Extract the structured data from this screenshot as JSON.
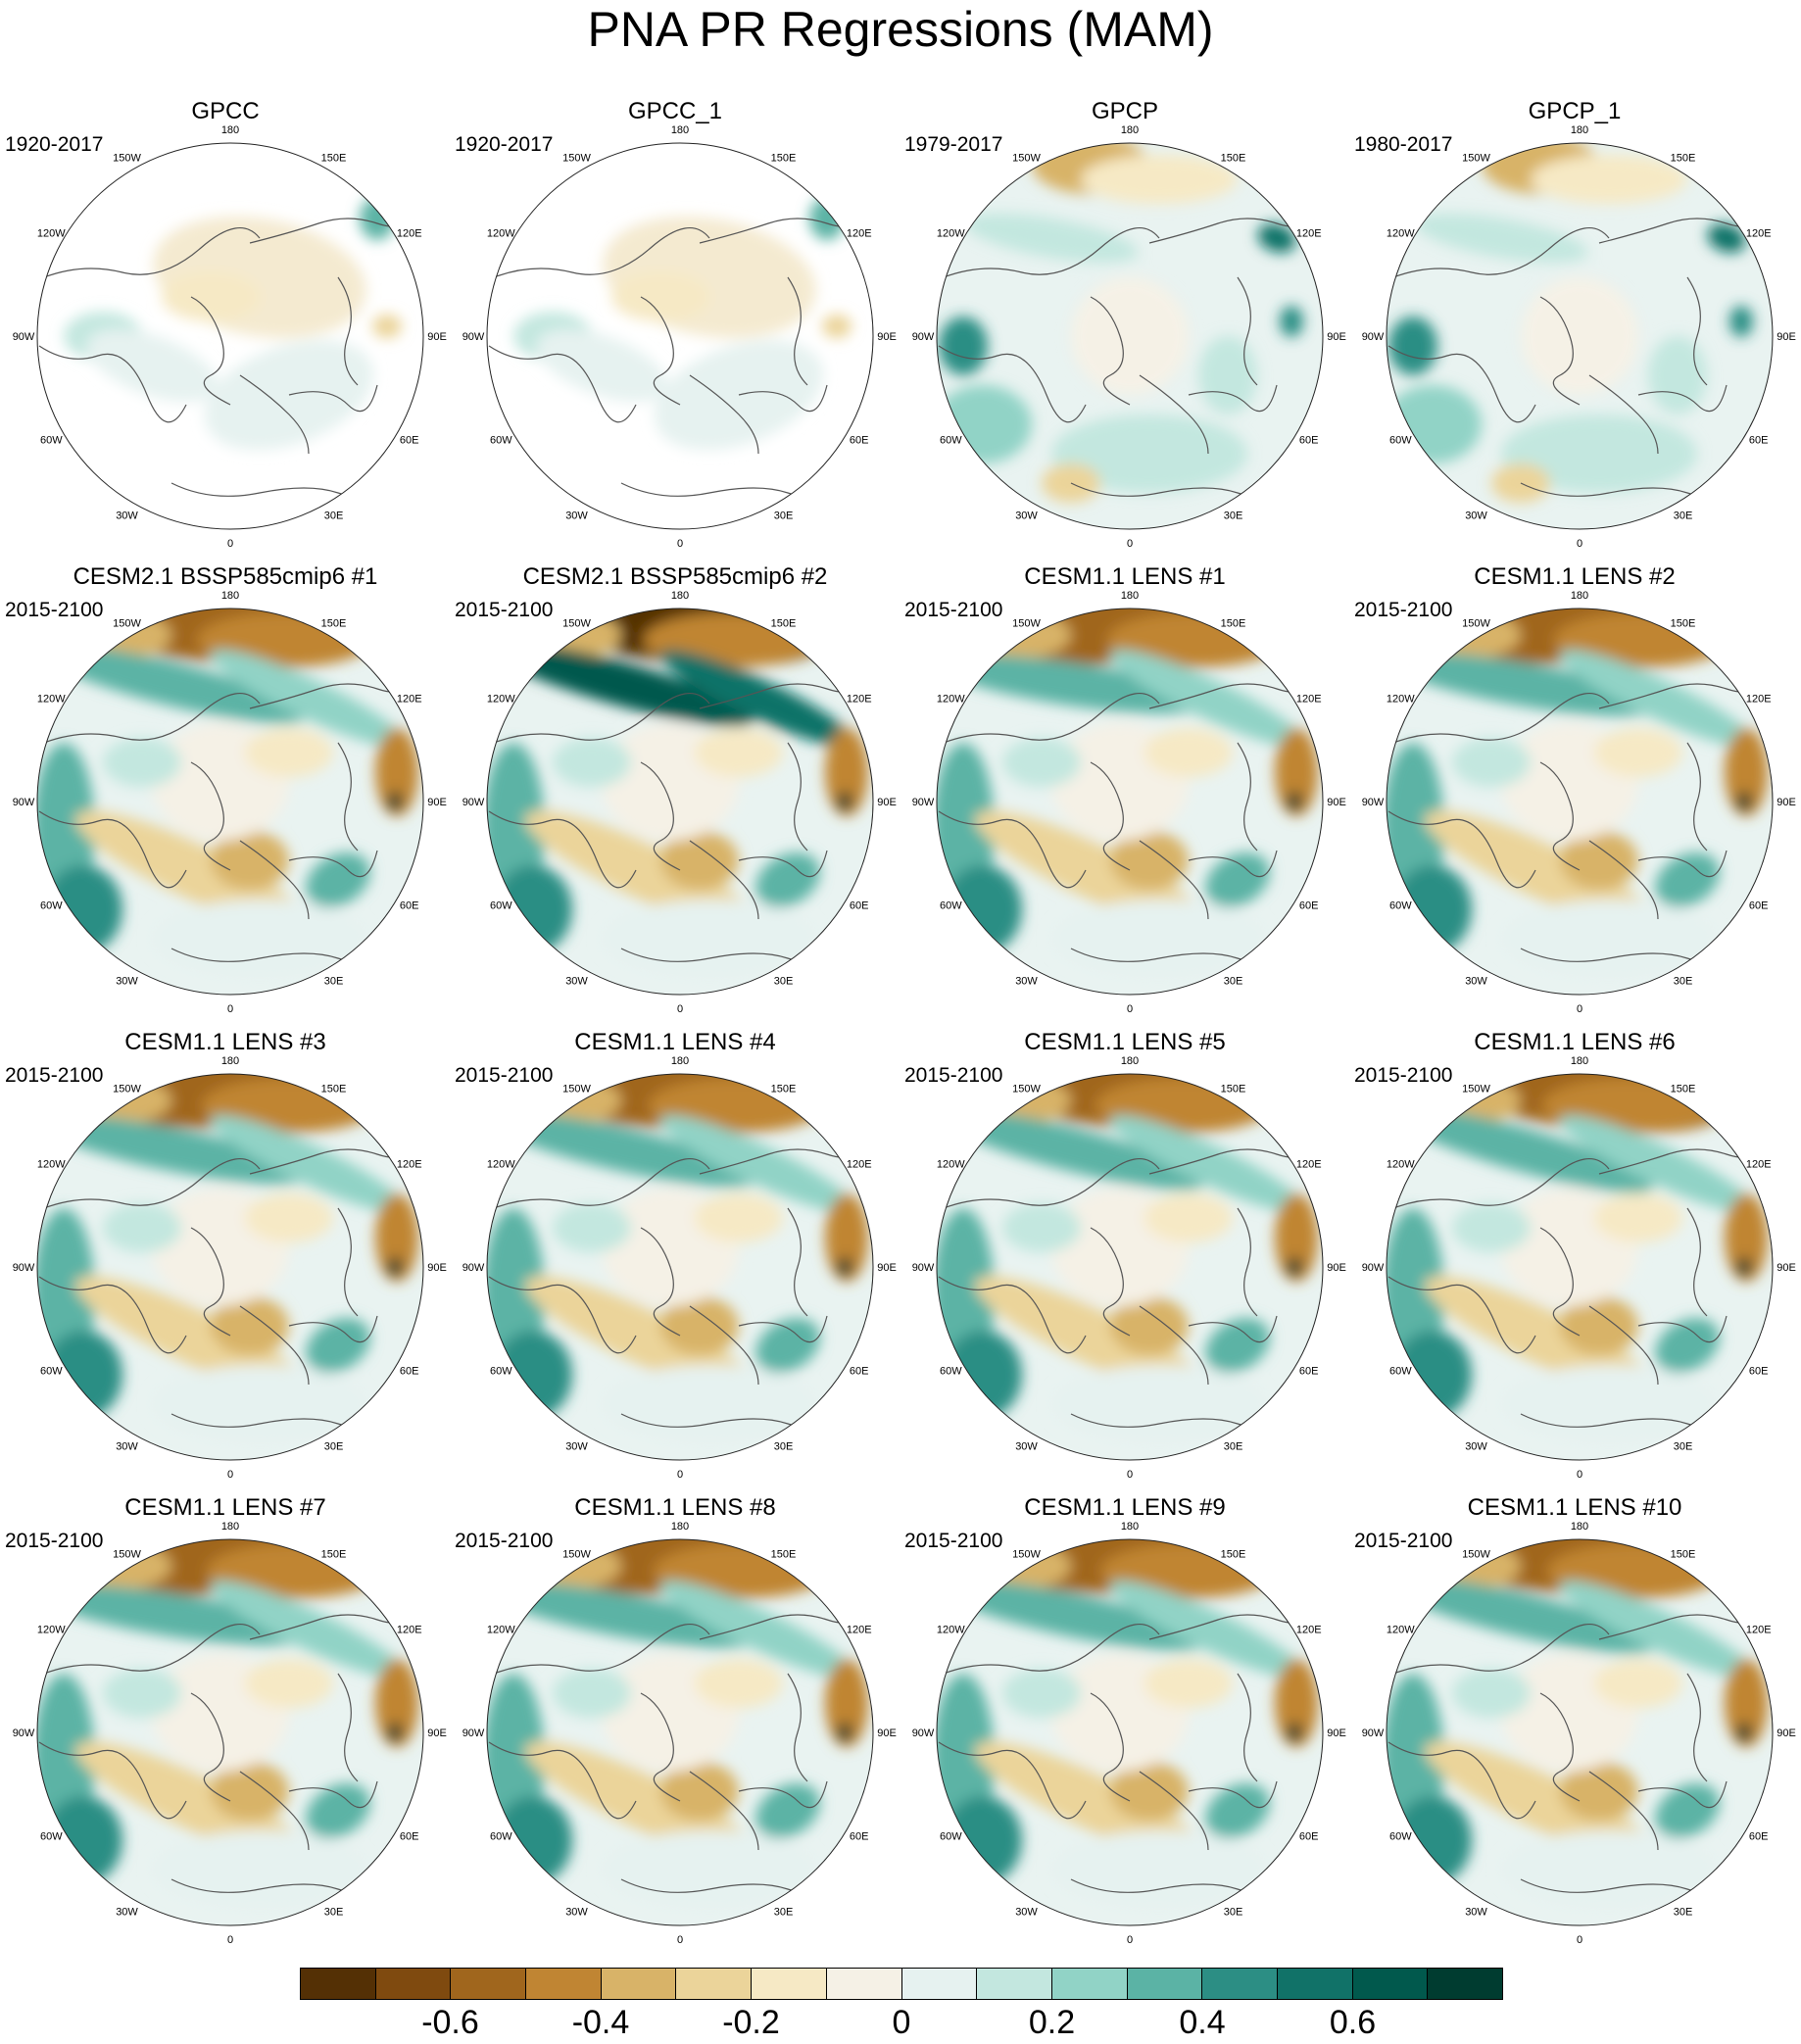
{
  "title": "PNA PR Regressions (MAM)",
  "panels": [
    {
      "title": "GPCC",
      "period": "1920-2017"
    },
    {
      "title": "GPCC_1",
      "period": "1920-2017"
    },
    {
      "title": "GPCP",
      "period": "1979-2017"
    },
    {
      "title": "GPCP_1",
      "period": "1980-2017"
    },
    {
      "title": "CESM2.1 BSSP585cmip6 #1",
      "period": "2015-2100"
    },
    {
      "title": "CESM2.1 BSSP585cmip6 #2",
      "period": "2015-2100"
    },
    {
      "title": "CESM1.1 LENS #1",
      "period": "2015-2100"
    },
    {
      "title": "CESM1.1 LENS #2",
      "period": "2015-2100"
    },
    {
      "title": "CESM1.1 LENS #3",
      "period": "2015-2100"
    },
    {
      "title": "CESM1.1 LENS #4",
      "period": "2015-2100"
    },
    {
      "title": "CESM1.1 LENS #5",
      "period": "2015-2100"
    },
    {
      "title": "CESM1.1 LENS #6",
      "period": "2015-2100"
    },
    {
      "title": "CESM1.1 LENS #7",
      "period": "2015-2100"
    },
    {
      "title": "CESM1.1 LENS #8",
      "period": "2015-2100"
    },
    {
      "title": "CESM1.1 LENS #9",
      "period": "2015-2100"
    },
    {
      "title": "CESM1.1 LENS #10",
      "period": "2015-2100"
    }
  ],
  "longitude_labels": [
    "180",
    "150E",
    "120E",
    "90E",
    "60E",
    "30E",
    "0",
    "30W",
    "60W",
    "90W",
    "120W",
    "150W"
  ],
  "colorbar": {
    "colors": [
      "#543005",
      "#7f4a0f",
      "#a0661d",
      "#c08533",
      "#d8b368",
      "#ebd49a",
      "#f6e9c5",
      "#f5f1e6",
      "#e6f2f0",
      "#c3e7df",
      "#91d3c6",
      "#5bb3a5",
      "#2c8e84",
      "#117268",
      "#01594d",
      "#003c30"
    ],
    "labels": [
      "-0.6",
      "-0.4",
      "-0.2",
      "0",
      "0.2",
      "0.4",
      "0.6"
    ],
    "label_values": [
      -0.6,
      -0.4,
      -0.2,
      0,
      0.2,
      0.4,
      0.6
    ],
    "range": [
      -0.8,
      0.8
    ]
  }
}
